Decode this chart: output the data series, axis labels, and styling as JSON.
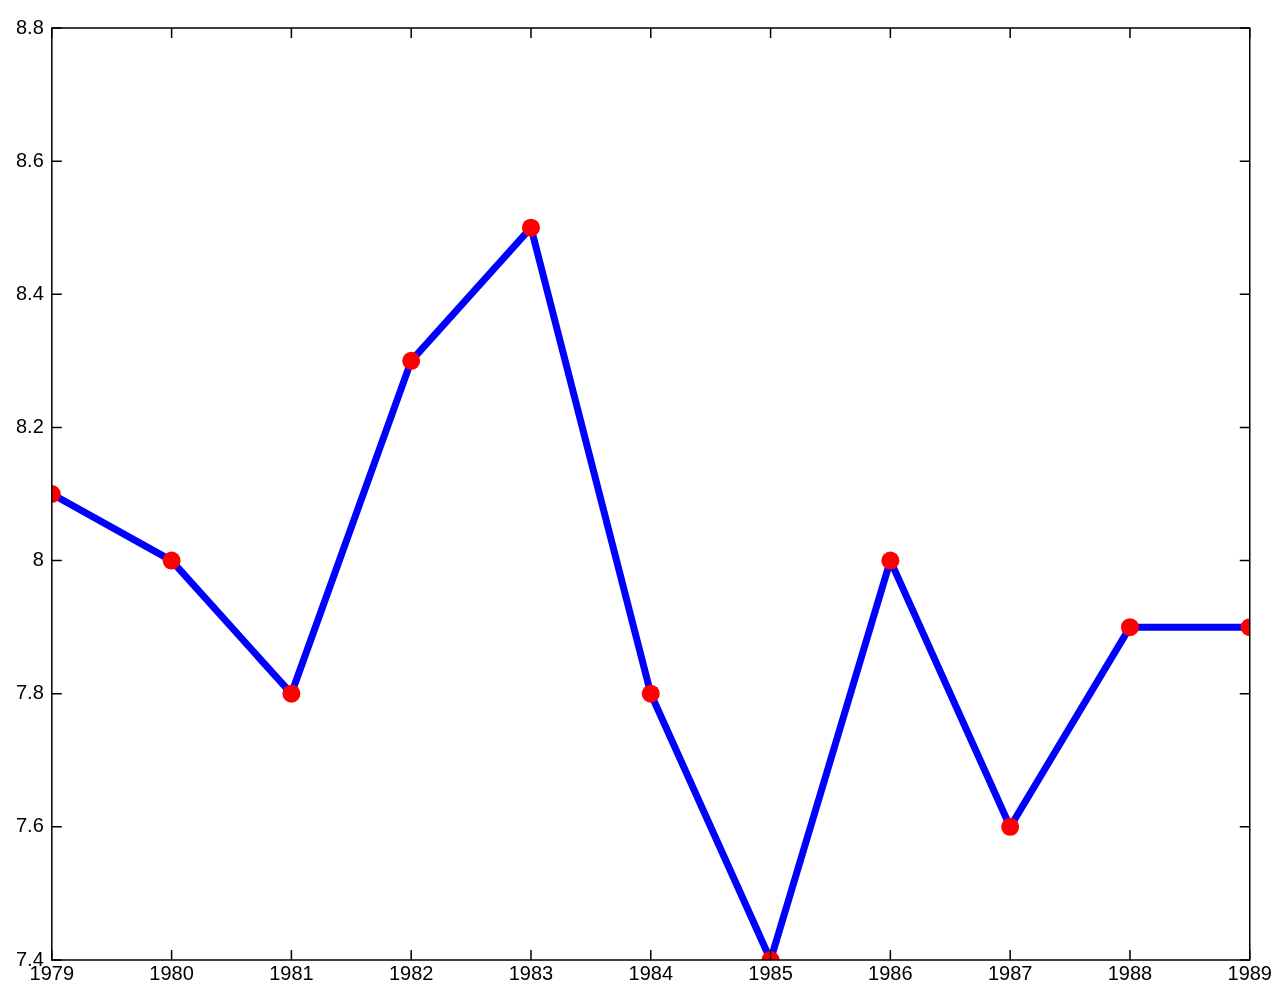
{
  "chart_data": {
    "type": "line",
    "x": [
      1979,
      1980,
      1981,
      1982,
      1983,
      1984,
      1985,
      1986,
      1987,
      1988,
      1989
    ],
    "series": [
      {
        "color": "#0000ff",
        "colors": [
          "#ff0000",
          "#ff0000",
          "#ff0000",
          "#ff0000",
          "#ff0000",
          "#ff0000",
          "#ff0000",
          "#ff0000",
          "#ff0000",
          "#ff0000",
          "#ff0000"
        ],
        "values": [
          8.1,
          8.0,
          7.8,
          8.3,
          8.5,
          7.8,
          7.4,
          8.0,
          7.6,
          7.9,
          7.9
        ]
      }
    ],
    "xlim": [
      1979,
      1989
    ],
    "xticks": [
      1979,
      1980,
      1981,
      1982,
      1983,
      1984,
      1985,
      1986,
      1987,
      1988,
      1989
    ],
    "ylim": [
      7.4,
      8.8
    ],
    "yticks": [
      7.4,
      7.6,
      7.8,
      8,
      8.2,
      8.4,
      8.6,
      8.8
    ],
    "marker": "circle",
    "line_style": "solid",
    "grid": false,
    "legend": false
  }
}
